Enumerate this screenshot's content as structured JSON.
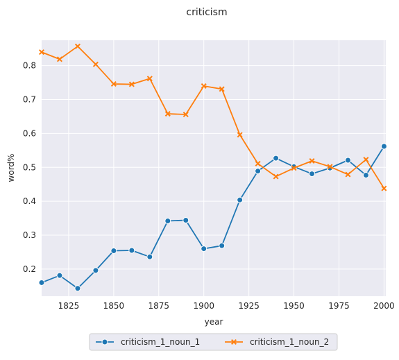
{
  "chart_data": {
    "type": "line",
    "title": "criticism",
    "xlabel": "year",
    "ylabel": "word%",
    "xlim": [
      1810,
      2001
    ],
    "ylim": [
      0.12,
      0.875
    ],
    "xticks": [
      1825,
      1850,
      1875,
      1900,
      1925,
      1950,
      1975,
      2000
    ],
    "yticks": [
      0.2,
      0.3,
      0.4,
      0.5,
      0.6,
      0.7,
      0.8
    ],
    "grid": true,
    "legend_position": "bottom-center",
    "x": [
      1810,
      1820,
      1830,
      1840,
      1850,
      1860,
      1870,
      1880,
      1890,
      1900,
      1910,
      1920,
      1930,
      1940,
      1950,
      1960,
      1970,
      1980,
      1990,
      2000
    ],
    "series": [
      {
        "name": "criticism_1_noun_1",
        "color": "#1f77b4",
        "marker": "circle",
        "values": [
          0.16,
          0.181,
          0.143,
          0.196,
          0.254,
          0.255,
          0.236,
          0.342,
          0.344,
          0.26,
          0.269,
          0.404,
          0.489,
          0.527,
          0.502,
          0.481,
          0.498,
          0.521,
          0.477,
          0.562
        ]
      },
      {
        "name": "criticism_1_noun_2",
        "color": "#ff7f0e",
        "marker": "x",
        "values": [
          0.84,
          0.819,
          0.857,
          0.804,
          0.746,
          0.745,
          0.762,
          0.658,
          0.656,
          0.74,
          0.731,
          0.596,
          0.511,
          0.473,
          0.498,
          0.519,
          0.502,
          0.479,
          0.523,
          0.438
        ]
      }
    ]
  }
}
